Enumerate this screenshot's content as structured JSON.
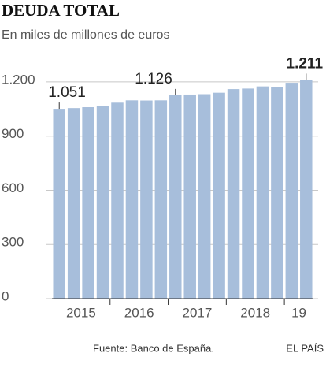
{
  "chart_data": {
    "type": "bar",
    "title": "DEUDA TOTAL",
    "subtitle": "En miles de millones de euros",
    "categories": [
      "2015",
      null,
      null,
      null,
      "2016",
      null,
      null,
      null,
      "2017",
      null,
      null,
      null,
      "2018",
      null,
      null,
      null,
      "19",
      null
    ],
    "values": [
      1051,
      1055,
      1060,
      1065,
      1085,
      1098,
      1097,
      1098,
      1126,
      1130,
      1132,
      1140,
      1160,
      1163,
      1175,
      1172,
      1195,
      1211
    ],
    "value_labels": [
      "1.051",
      null,
      null,
      null,
      null,
      null,
      null,
      null,
      "1.126",
      null,
      null,
      null,
      null,
      null,
      null,
      null,
      null,
      "1.211"
    ],
    "color": "#a7bedb",
    "ylim": [
      0,
      1300
    ],
    "yticks": [
      0,
      300,
      600,
      900,
      {
        "value": 1200,
        "label": "1.200"
      }
    ],
    "grid": true,
    "source": "Fuente: Banco de España.",
    "credit": "EL PAÍS"
  }
}
